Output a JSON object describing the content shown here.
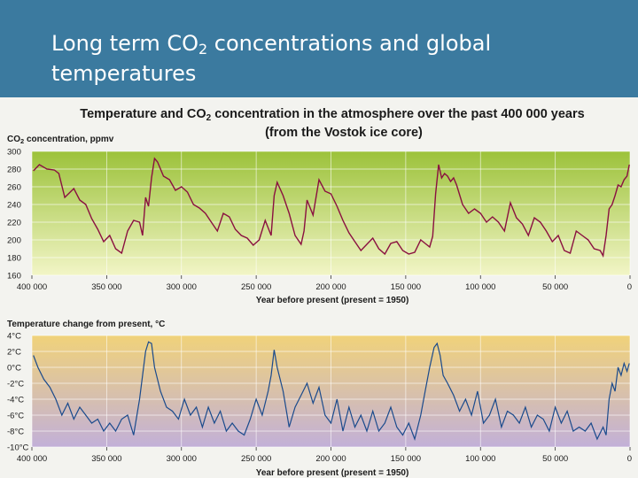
{
  "slide": {
    "title_part1": "Long term CO",
    "title_sub": "2",
    "title_part2": " concentrations and global temperatures"
  },
  "figure": {
    "title_line1_a": "Temperature and CO",
    "title_line1_sub": "2",
    "title_line1_b": " concentration in the atmosphere over the past 400 000 years",
    "title_line2": "(from the Vostok ice core)"
  },
  "colors": {
    "header": "#3b7a9f",
    "co2_line": "#8a1040",
    "temp_line": "#1a4a8c",
    "co2_bg_top": "#9cc23a",
    "co2_bg_bottom": "#f2f5c6",
    "temp_bg_top": "#f0d27a",
    "temp_bg_bottom": "#c2b0d8"
  },
  "chart_data": [
    {
      "type": "line",
      "ylabel_a": "CO",
      "ylabel_sub": "2",
      "ylabel_b": " concentration, ppmv",
      "xlabel": "Year before present (present = 1950)",
      "x_reversed": true,
      "xlim": [
        400000,
        0
      ],
      "ylim": [
        160,
        300
      ],
      "x_ticks": [
        400000,
        350000,
        300000,
        250000,
        200000,
        150000,
        100000,
        50000,
        0
      ],
      "x_tick_labels": [
        "400 000",
        "350 000",
        "300 000",
        "250 000",
        "200 000",
        "150 000",
        "100 000",
        "50 000",
        "0"
      ],
      "y_ticks": [
        160,
        180,
        200,
        220,
        240,
        260,
        280,
        300
      ],
      "y_tick_labels": [
        "160",
        "180",
        "200",
        "220",
        "240",
        "260",
        "280",
        "300"
      ],
      "grid": true,
      "series": [
        {
          "x": [
            399000,
            395000,
            390000,
            385000,
            382000,
            378000,
            372000,
            368000,
            364000,
            360000,
            356000,
            352000,
            348000,
            344000,
            340000,
            336000,
            332000,
            328000,
            326000,
            324000,
            322000,
            320000,
            318000,
            316000,
            312000,
            308000,
            304000,
            300000,
            296000,
            292000,
            288000,
            284000,
            280000,
            276000,
            272000,
            268000,
            264000,
            260000,
            256000,
            252000,
            248000,
            244000,
            240000,
            238000,
            236000,
            232000,
            228000,
            224000,
            220000,
            218000,
            216000,
            212000,
            208000,
            204000,
            200000,
            196000,
            192000,
            188000,
            184000,
            180000,
            176000,
            172000,
            168000,
            164000,
            160000,
            156000,
            152000,
            148000,
            144000,
            140000,
            137000,
            134000,
            132000,
            130000,
            128000,
            126000,
            124000,
            122000,
            120000,
            118000,
            116000,
            112000,
            108000,
            104000,
            100000,
            96000,
            92000,
            88000,
            84000,
            80000,
            76000,
            72000,
            68000,
            64000,
            60000,
            56000,
            52000,
            48000,
            44000,
            40000,
            36000,
            32000,
            28000,
            24000,
            20000,
            18000,
            16000,
            14000,
            12000,
            10000,
            8000,
            6000,
            4000,
            2000,
            500
          ],
          "y": [
            278,
            285,
            280,
            279,
            275,
            248,
            258,
            245,
            240,
            224,
            212,
            198,
            205,
            190,
            185,
            210,
            222,
            220,
            205,
            248,
            238,
            270,
            292,
            288,
            272,
            268,
            256,
            260,
            254,
            240,
            236,
            230,
            220,
            210,
            230,
            226,
            212,
            205,
            202,
            194,
            200,
            222,
            205,
            250,
            265,
            250,
            230,
            205,
            195,
            210,
            245,
            228,
            268,
            255,
            252,
            238,
            222,
            208,
            198,
            188,
            195,
            202,
            190,
            184,
            196,
            198,
            188,
            184,
            186,
            200,
            196,
            192,
            204,
            252,
            285,
            270,
            275,
            272,
            266,
            270,
            262,
            240,
            230,
            235,
            230,
            220,
            226,
            220,
            210,
            242,
            225,
            218,
            205,
            225,
            220,
            210,
            198,
            205,
            188,
            185,
            210,
            205,
            200,
            190,
            188,
            182,
            205,
            235,
            240,
            250,
            262,
            260,
            268,
            272,
            285
          ]
        }
      ]
    },
    {
      "type": "line",
      "ylabel": "Temperature change from present, °C",
      "xlabel": "Year before present (present = 1950)",
      "x_reversed": true,
      "xlim": [
        400000,
        0
      ],
      "ylim": [
        -10,
        4
      ],
      "x_ticks": [
        400000,
        350000,
        300000,
        250000,
        200000,
        150000,
        100000,
        50000,
        0
      ],
      "x_tick_labels": [
        "400 000",
        "350 000",
        "300 000",
        "250 000",
        "200 000",
        "150 000",
        "100 000",
        "50 000",
        "0"
      ],
      "y_ticks": [
        -10,
        -8,
        -6,
        -4,
        -2,
        0,
        2,
        4
      ],
      "y_tick_labels": [
        "-10°C",
        "-8°C",
        "-6°C",
        "-4°C",
        "-2°C",
        "0°C",
        "2°C",
        "4°C"
      ],
      "grid": true,
      "series": [
        {
          "x": [
            399000,
            396000,
            392000,
            388000,
            384000,
            380000,
            376000,
            372000,
            368000,
            364000,
            360000,
            356000,
            352000,
            348000,
            344000,
            340000,
            336000,
            332000,
            328000,
            326000,
            324000,
            322000,
            320000,
            318000,
            314000,
            310000,
            306000,
            302000,
            298000,
            294000,
            290000,
            286000,
            282000,
            278000,
            274000,
            270000,
            266000,
            262000,
            258000,
            254000,
            250000,
            246000,
            242000,
            240000,
            238000,
            236000,
            232000,
            228000,
            224000,
            220000,
            216000,
            212000,
            208000,
            204000,
            200000,
            196000,
            192000,
            188000,
            184000,
            180000,
            176000,
            172000,
            168000,
            164000,
            160000,
            156000,
            152000,
            148000,
            144000,
            140000,
            137000,
            134000,
            131000,
            129000,
            127000,
            125000,
            122000,
            118000,
            114000,
            110000,
            106000,
            102000,
            98000,
            94000,
            90000,
            86000,
            82000,
            78000,
            74000,
            70000,
            66000,
            62000,
            58000,
            54000,
            50000,
            46000,
            42000,
            38000,
            34000,
            30000,
            26000,
            22000,
            18000,
            16000,
            14000,
            12000,
            10000,
            8000,
            6000,
            4000,
            2000,
            500
          ],
          "y": [
            1.5,
            0,
            -1.5,
            -2.5,
            -4,
            -6,
            -4.5,
            -6.5,
            -5,
            -6,
            -7,
            -6.5,
            -8,
            -7,
            -8,
            -6.5,
            -6,
            -8.5,
            -4,
            -1,
            2,
            3.2,
            3,
            0,
            -3,
            -5,
            -5.5,
            -6.5,
            -4,
            -6,
            -5,
            -7.5,
            -5,
            -7,
            -5.5,
            -8,
            -7,
            -8,
            -8.5,
            -6.5,
            -4,
            -6,
            -3,
            -1,
            2.2,
            0,
            -3,
            -7.5,
            -5,
            -3.5,
            -2,
            -4.5,
            -2.5,
            -6,
            -7,
            -4,
            -8,
            -5,
            -7.5,
            -6,
            -8,
            -5.5,
            -8,
            -7,
            -5,
            -7.5,
            -8.5,
            -7,
            -9,
            -6,
            -3,
            0,
            2.5,
            3,
            1.5,
            -1,
            -2,
            -3.5,
            -5.5,
            -4,
            -6,
            -3,
            -7,
            -6,
            -4,
            -7.5,
            -5.5,
            -6,
            -7,
            -5,
            -7.5,
            -6,
            -6.5,
            -8,
            -5,
            -7,
            -5.5,
            -8,
            -7.5,
            -8,
            -7,
            -9,
            -7.5,
            -8.5,
            -4,
            -2,
            -3,
            0,
            -1,
            0.5,
            -0.5,
            0.5
          ]
        }
      ]
    }
  ]
}
